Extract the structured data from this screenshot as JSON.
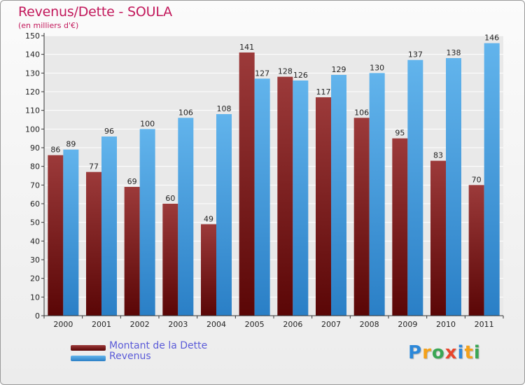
{
  "title": "Revenus/Dette - SOULA",
  "subtitle": "(en milliers d'€)",
  "logo": {
    "text": "Proxiti",
    "letters": [
      {
        "ch": "P",
        "color": "#2c88d9"
      },
      {
        "ch": "r",
        "color": "#f4a11a"
      },
      {
        "ch": "o",
        "color": "#3aa655"
      },
      {
        "ch": "x",
        "color": "#e8452c"
      },
      {
        "ch": "i",
        "color": "#2c88d9"
      },
      {
        "ch": "t",
        "color": "#f4a11a"
      },
      {
        "ch": "i",
        "color": "#3aa655"
      }
    ]
  },
  "colors": {
    "dette_light": "#9c3a3a",
    "dette_dark": "#5a0606",
    "revenus_light": "#62b4ec",
    "revenus_dark": "#2a7fc6",
    "axis": "#333333",
    "grid": "#ffffff"
  },
  "chart_data": {
    "type": "bar",
    "categories": [
      "2000",
      "2001",
      "2002",
      "2003",
      "2004",
      "2005",
      "2006",
      "2007",
      "2008",
      "2009",
      "2010",
      "2011"
    ],
    "series": [
      {
        "name": "Montant de la Dette",
        "values": [
          86,
          77,
          69,
          60,
          49,
          141,
          128,
          117,
          106,
          95,
          83,
          70
        ]
      },
      {
        "name": "Revenus",
        "values": [
          89,
          96,
          100,
          106,
          108,
          127,
          126,
          129,
          130,
          137,
          138,
          146
        ]
      }
    ],
    "ylim": [
      0,
      150
    ],
    "yticks": [
      0,
      10,
      20,
      30,
      40,
      50,
      60,
      70,
      80,
      90,
      100,
      110,
      120,
      130,
      140,
      150
    ],
    "grid": true,
    "legend": "bottom-left"
  }
}
